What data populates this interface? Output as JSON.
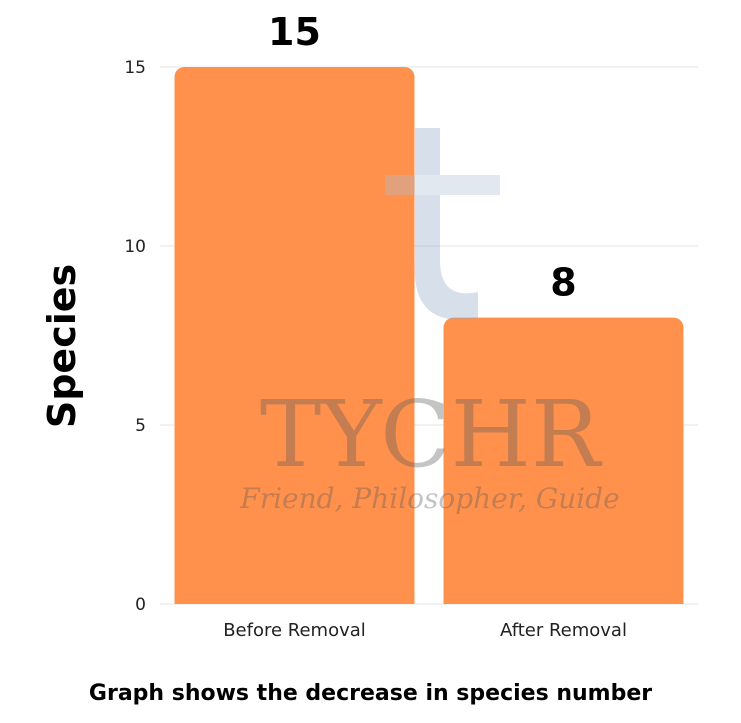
{
  "chart_data": {
    "type": "bar",
    "categories": [
      "Before Removal",
      "After Removal"
    ],
    "values": [
      15,
      8
    ],
    "data_labels": [
      "15",
      "8"
    ],
    "ylabel": "Species",
    "xlabel": "",
    "ylim": [
      0,
      15
    ],
    "yticks": [
      0,
      5,
      10,
      15
    ],
    "grid": true,
    "bar_color": "#FF914D"
  },
  "caption": "Graph shows the decrease in species number",
  "watermark": {
    "brand": "TYCHR",
    "tagline": "Friend, Philosopher, Guide"
  }
}
